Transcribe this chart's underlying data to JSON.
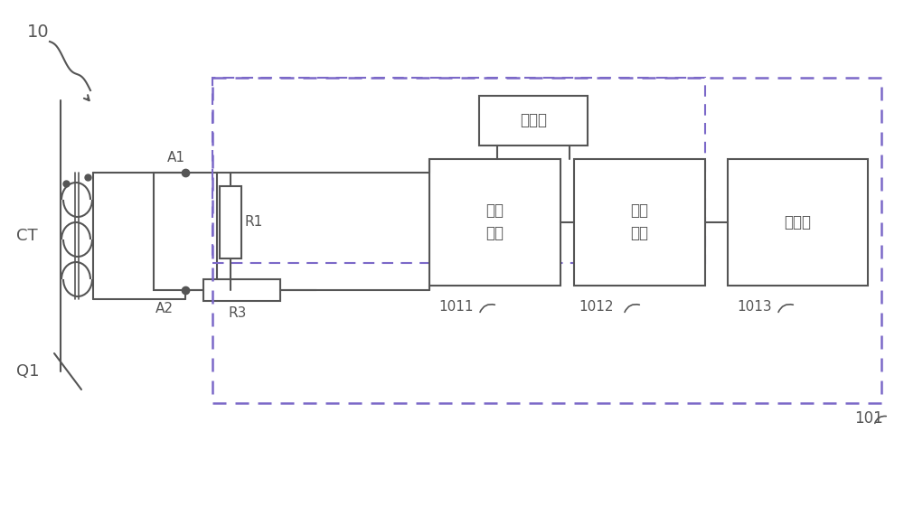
{
  "bg_color": "#ffffff",
  "line_color": "#555555",
  "box_border_color": "#555555",
  "dashed_box_color": "#9B59B6",
  "title_label": "10",
  "ct_label": "CT",
  "q1_label": "Q1",
  "a1_label": "A1",
  "a2_label": "A2",
  "r1_label": "R1",
  "r3_label": "R3",
  "dc_label": "直流源",
  "compare_label": "比较\n单元",
  "trigger_label": "触发\n单元",
  "controller_label": "控制器",
  "id_1011": "1011",
  "id_1012": "1012",
  "id_1013": "1013",
  "id_101": "101"
}
